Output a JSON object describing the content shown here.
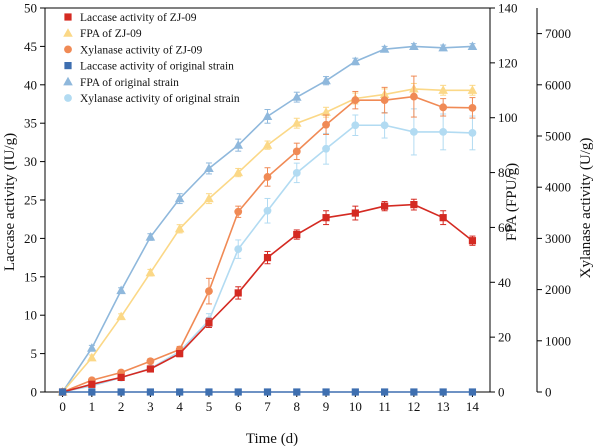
{
  "chart_data": {
    "type": "line",
    "xlabel": "Time (d)",
    "x": [
      0,
      1,
      2,
      3,
      4,
      5,
      6,
      7,
      8,
      9,
      10,
      11,
      12,
      13,
      14
    ],
    "xticks": [
      "0",
      "1",
      "2",
      "3",
      "4",
      "5",
      "6",
      "7",
      "8",
      "9",
      "10",
      "11",
      "12",
      "13",
      "14"
    ],
    "xlim": [
      -0.6,
      14.6
    ],
    "axes": {
      "left": {
        "label": "Laccase activity (IU/g)",
        "ylim": [
          0,
          50
        ],
        "ticks": [
          "0",
          "5",
          "10",
          "15",
          "20",
          "25",
          "30",
          "35",
          "40",
          "45",
          "50"
        ]
      },
      "right1": {
        "label": "FPA (FPU/g)",
        "ylim": [
          0,
          140
        ],
        "ticks": [
          "0",
          "20",
          "40",
          "60",
          "80",
          "100",
          "120",
          "140"
        ]
      },
      "right2": {
        "label": "Xylanase activity (U/g)",
        "ylim": [
          0,
          7500
        ],
        "ticks": [
          "0",
          "1000",
          "2000",
          "3000",
          "4000",
          "5000",
          "6000",
          "7000"
        ]
      }
    },
    "legend_position": "top-left",
    "grid": false,
    "series": [
      {
        "name": "Laccase activity of ZJ-09",
        "axis": "left",
        "marker": "square",
        "color": "#d42a22",
        "values": [
          0,
          1.0,
          1.9,
          3.0,
          5.0,
          9.0,
          12.9,
          17.5,
          20.5,
          22.7,
          23.3,
          24.2,
          24.4,
          22.7,
          19.7
        ],
        "errors": [
          0,
          0.2,
          0.3,
          0.3,
          0.4,
          0.6,
          0.8,
          0.8,
          0.6,
          0.9,
          0.9,
          0.6,
          0.7,
          0.9,
          0.6
        ]
      },
      {
        "name": "FPA of ZJ-09",
        "axis": "right1",
        "marker": "triangle",
        "color": "#fbd887",
        "values": [
          0,
          12.5,
          27.5,
          43.5,
          59.5,
          70.5,
          80.0,
          90.0,
          98.0,
          102.0,
          107.0,
          108.5,
          110.5,
          110.0,
          110.0
        ],
        "errors": [
          0,
          1.0,
          1.0,
          1.2,
          1.5,
          1.8,
          1.5,
          1.5,
          1.8,
          1.8,
          2.0,
          2.0,
          2.0,
          1.8,
          1.8
        ]
      },
      {
        "name": "Xylanase activity of ZJ-09",
        "axis": "right2",
        "marker": "circle",
        "color": "#f08a55",
        "values": [
          0,
          230,
          380,
          600,
          830,
          1970,
          3520,
          4200,
          4700,
          5220,
          5700,
          5700,
          5770,
          5560,
          5550
        ],
        "errors": [
          0,
          40,
          40,
          50,
          60,
          250,
          110,
          180,
          160,
          190,
          170,
          250,
          400,
          170,
          200
        ]
      },
      {
        "name": "Laccase activity of original strain",
        "axis": "left",
        "marker": "square",
        "color": "#3e6fb0",
        "values": [
          0,
          0,
          0,
          0,
          0,
          0,
          0,
          0,
          0,
          0,
          0,
          0,
          0,
          0,
          0
        ],
        "errors": [
          0,
          0,
          0,
          0,
          0,
          0,
          0,
          0,
          0,
          0,
          0,
          0,
          0,
          0,
          0
        ]
      },
      {
        "name": "FPA of original strain",
        "axis": "right1",
        "marker": "triangle",
        "color": "#8fb8dc",
        "values": [
          0,
          16.0,
          37.0,
          56.5,
          70.5,
          81.5,
          90.0,
          100.5,
          107.5,
          113.5,
          120.5,
          125.0,
          126.0,
          125.5,
          126.0
        ],
        "errors": [
          0,
          1.0,
          1.0,
          1.2,
          1.8,
          2.0,
          2.2,
          2.5,
          1.8,
          1.5,
          1.2,
          1.0,
          1.0,
          1.0,
          1.0
        ]
      },
      {
        "name": "Xylanase activity of original strain",
        "axis": "right2",
        "marker": "circle",
        "color": "#b2dbf2",
        "values": [
          0,
          120,
          280,
          460,
          790,
          1400,
          2790,
          3540,
          4280,
          4750,
          5210,
          5210,
          5080,
          5080,
          5060
        ],
        "errors": [
          0,
          30,
          40,
          50,
          60,
          130,
          180,
          240,
          190,
          300,
          200,
          250,
          450,
          350,
          330
        ]
      }
    ]
  }
}
